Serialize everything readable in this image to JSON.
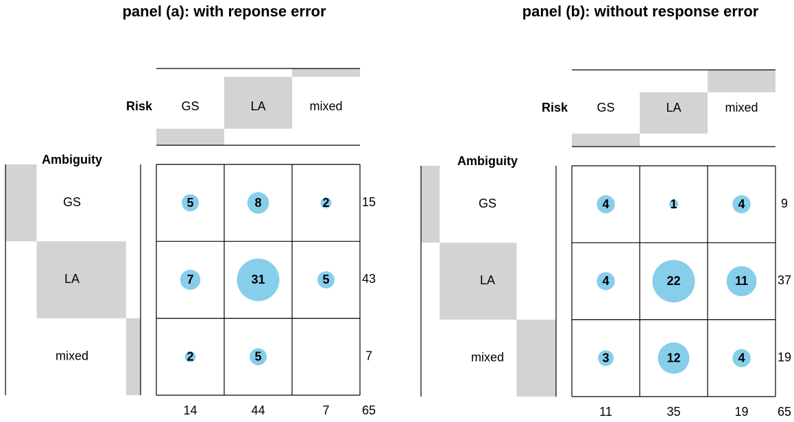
{
  "chart_data": [
    {
      "type": "balloon",
      "title": "panel (a): with reponse error",
      "row_label": "Ambiguity",
      "col_label": "Risk",
      "rows": [
        "GS",
        "LA",
        "mixed"
      ],
      "columns": [
        "GS",
        "LA",
        "mixed"
      ],
      "values": [
        [
          5,
          8,
          2
        ],
        [
          7,
          31,
          5
        ],
        [
          2,
          5,
          null
        ]
      ],
      "row_totals": [
        15,
        43,
        7
      ],
      "col_totals": [
        14,
        44,
        7
      ],
      "total": 65,
      "color": "#87ceeb",
      "margin_color": "#d3d3d3"
    },
    {
      "type": "balloon",
      "title": "panel (b): without response error",
      "row_label": "Ambiguity",
      "col_label": "Risk",
      "rows": [
        "GS",
        "LA",
        "mixed"
      ],
      "columns": [
        "GS",
        "LA",
        "mixed"
      ],
      "values": [
        [
          4,
          1,
          4
        ],
        [
          4,
          22,
          11
        ],
        [
          3,
          12,
          4
        ]
      ],
      "row_totals": [
        9,
        37,
        19
      ],
      "col_totals": [
        11,
        35,
        19
      ],
      "total": 65,
      "color": "#87ceeb",
      "margin_color": "#d3d3d3"
    }
  ]
}
